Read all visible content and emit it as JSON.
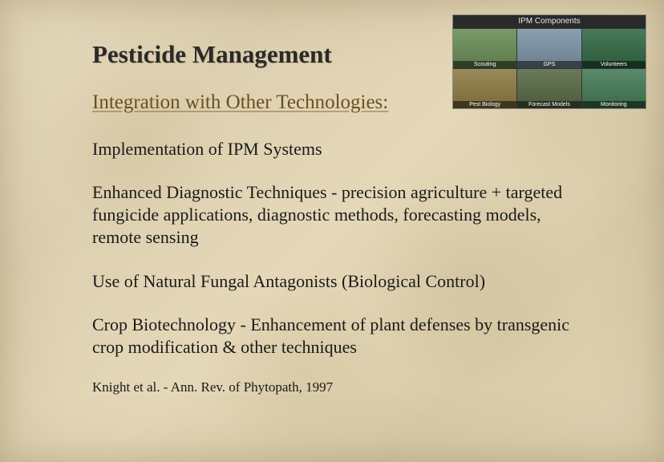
{
  "slide": {
    "title": "Pesticide Management",
    "subtitle": "Integration with Other Technologies:",
    "paragraphs": [
      "Implementation of IPM Systems",
      "Enhanced Diagnostic Techniques - precision agriculture + targeted fungicide applications, diagnostic methods, forecasting models, remote sensing",
      "Use of Natural Fungal Antagonists (Biological Control)",
      "Crop Biotechnology - Enhancement of plant defenses by transgenic crop modification & other techniques"
    ],
    "citation": "Knight et al. - Ann. Rev. of Phytopath, 1997"
  },
  "ipm_image": {
    "header": "IPM Components",
    "cells": [
      {
        "label": "Scouting",
        "bg_class": "c1"
      },
      {
        "label": "GPS",
        "bg_class": "c2"
      },
      {
        "label": "Volunteers",
        "bg_class": "c3"
      },
      {
        "label": "Pest Biology",
        "bg_class": "c4"
      },
      {
        "label": "Forecast Models",
        "bg_class": "c5"
      },
      {
        "label": "Monitoring",
        "bg_class": "c6"
      }
    ]
  },
  "style": {
    "background_colors": [
      "#e8dcc0",
      "#ddd0b0",
      "#e5d8b8",
      "#d8cba8",
      "#e0d3b3"
    ],
    "title_color": "#2a2a2a",
    "title_fontsize": 31,
    "subtitle_color": "#6a5020",
    "subtitle_fontsize": 25,
    "body_color": "#1a1a1a",
    "body_fontsize": 22,
    "citation_fontsize": 17,
    "font_family": "Georgia, Times New Roman, serif",
    "slide_width": 828,
    "slide_height": 576
  }
}
